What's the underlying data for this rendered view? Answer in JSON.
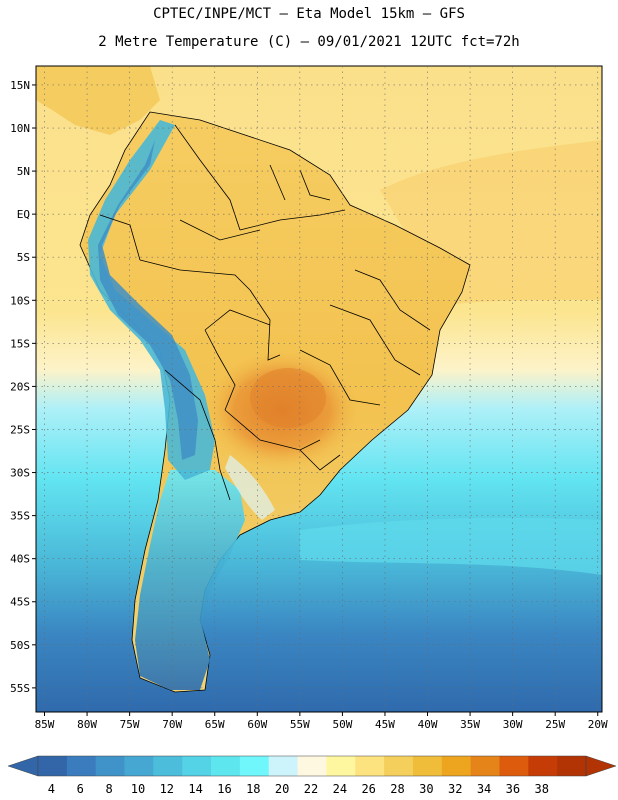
{
  "header": {
    "title_line1": "CPTEC/INPE/MCT –  Eta Model 15km – GFS",
    "title_line2": "2 Metre Temperature (C) – 09/01/2021 12UTC fct=72h"
  },
  "map": {
    "lat_labels": [
      "15N",
      "10N",
      "5N",
      "EQ",
      "5S",
      "10S",
      "15S",
      "20S",
      "25S",
      "30S",
      "35S",
      "40S",
      "45S",
      "50S",
      "55S"
    ],
    "lat_values": [
      15,
      10,
      5,
      0,
      -5,
      -10,
      -15,
      -20,
      -25,
      -30,
      -35,
      -40,
      -45,
      -50,
      -55
    ],
    "lon_labels": [
      "85W",
      "80W",
      "75W",
      "70W",
      "65W",
      "60W",
      "55W",
      "50W",
      "45W",
      "40W",
      "35W",
      "30W",
      "25W",
      "20W"
    ],
    "lon_values": [
      -85,
      -80,
      -75,
      -70,
      -65,
      -60,
      -55,
      -50,
      -45,
      -40,
      -35,
      -30,
      -25,
      -20
    ],
    "lat_range": [
      -57.8,
      17.2
    ],
    "lon_range": [
      -86,
      -19.5
    ],
    "hot_core_label": ""
  },
  "colorbar": {
    "labels": [
      "4",
      "6",
      "8",
      "10",
      "12",
      "14",
      "16",
      "18",
      "20",
      "22",
      "24",
      "26",
      "28",
      "30",
      "32",
      "34",
      "36",
      "38"
    ],
    "colors": [
      "#3266a8",
      "#3a7cbd",
      "#3f93c8",
      "#46a8d2",
      "#4cbddb",
      "#54d2e6",
      "#5ee6ef",
      "#6ff7fc",
      "#cdf4fb",
      "#fff8e0",
      "#fff6a0",
      "#fce380",
      "#f5cf5c",
      "#efbd3a",
      "#eda41e",
      "#e58419",
      "#dd5b0c",
      "#c63c06",
      "#b23304"
    ]
  },
  "colors": {
    "ocean_north": "#fbde84",
    "land_north": "#f7d46c",
    "andes": "#4ab8d6",
    "hot": "#e79a35",
    "ocean_south": "#46b7d8",
    "ocean_deep": "#2f72b3"
  }
}
